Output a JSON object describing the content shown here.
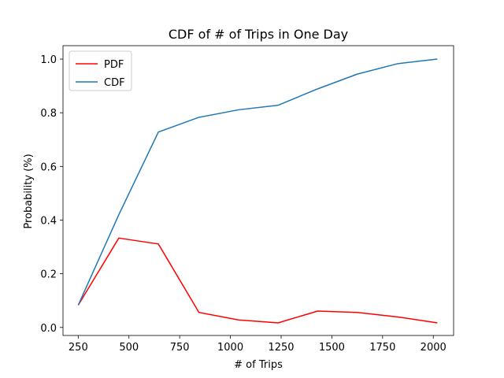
{
  "chart_data": {
    "type": "line",
    "title": "CDF of # of Trips in One Day",
    "xlabel": "# of Trips",
    "ylabel": "Probability (%)",
    "xlim": [
      175,
      2100
    ],
    "ylim": [
      -0.03,
      1.05
    ],
    "xticks": [
      250,
      500,
      750,
      1000,
      1250,
      1500,
      1750,
      2000
    ],
    "yticks": [
      0.0,
      0.2,
      0.4,
      0.6,
      0.8,
      1.0
    ],
    "xtick_labels": [
      "250",
      "500",
      "750",
      "1000",
      "1250",
      "1500",
      "1750",
      "2000"
    ],
    "ytick_labels": [
      "0.0",
      "0.2",
      "0.4",
      "0.6",
      "0.8",
      "1.0"
    ],
    "x": [
      250,
      450,
      645,
      845,
      1040,
      1235,
      1430,
      1625,
      1825,
      2020
    ],
    "series": [
      {
        "name": "PDF",
        "color": "#ff0000",
        "values": [
          0.083,
          0.333,
          0.311,
          0.056,
          0.028,
          0.017,
          0.061,
          0.056,
          0.039,
          0.017
        ]
      },
      {
        "name": "CDF",
        "color": "#1f77b4",
        "values": [
          0.083,
          0.42,
          0.728,
          0.783,
          0.811,
          0.828,
          0.889,
          0.944,
          0.983,
          1.0
        ]
      }
    ],
    "legend": "top-left",
    "grid": false
  }
}
